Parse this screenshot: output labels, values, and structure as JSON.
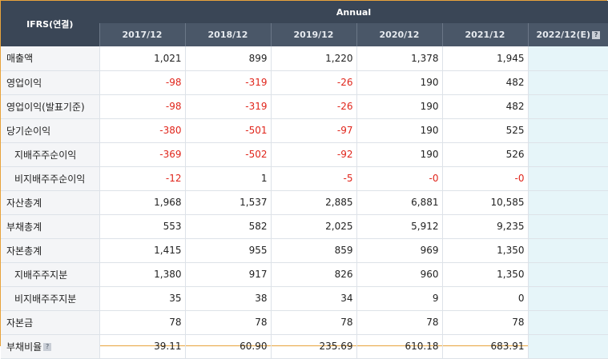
{
  "header": {
    "corner_label": "IFRS(연결)",
    "group_label": "Annual",
    "columns": [
      "2017/12",
      "2018/12",
      "2019/12",
      "2020/12",
      "2021/12",
      "2022/12(E)"
    ],
    "help_glyph": "?"
  },
  "rows": [
    {
      "label": "매출액",
      "values": [
        "1,021",
        "899",
        "1,220",
        "1,378",
        "1,945",
        ""
      ]
    },
    {
      "label": "영업이익",
      "values": [
        "-98",
        "-319",
        "-26",
        "190",
        "482",
        ""
      ]
    },
    {
      "label": "영업이익(발표기준)",
      "values": [
        "-98",
        "-319",
        "-26",
        "190",
        "482",
        ""
      ]
    },
    {
      "label": "당기순이익",
      "values": [
        "-380",
        "-501",
        "-97",
        "190",
        "525",
        ""
      ]
    },
    {
      "label": "지배주주순이익",
      "values": [
        "-369",
        "-502",
        "-92",
        "190",
        "526",
        ""
      ]
    },
    {
      "label": "비지배주주순이익",
      "values": [
        "-12",
        "1",
        "-5",
        "-0",
        "-0",
        ""
      ]
    },
    {
      "label": "자산총계",
      "values": [
        "1,968",
        "1,537",
        "2,885",
        "6,881",
        "10,585",
        ""
      ]
    },
    {
      "label": "부채총계",
      "values": [
        "553",
        "582",
        "2,025",
        "5,912",
        "9,235",
        ""
      ]
    },
    {
      "label": "자본총계",
      "values": [
        "1,415",
        "955",
        "859",
        "969",
        "1,350",
        ""
      ]
    },
    {
      "label": "지배주주지분",
      "values": [
        "1,380",
        "917",
        "826",
        "960",
        "1,350",
        ""
      ]
    },
    {
      "label": "비지배주주지분",
      "values": [
        "35",
        "38",
        "34",
        "9",
        "0",
        ""
      ]
    },
    {
      "label": "자본금",
      "values": [
        "78",
        "78",
        "78",
        "78",
        "78",
        ""
      ]
    },
    {
      "label": "부채비율",
      "values": [
        "39.11",
        "60.90",
        "235.69",
        "610.18",
        "683.91",
        ""
      ]
    }
  ],
  "colors": {
    "header_dark": "#3a4656",
    "header_mid": "#4a5768",
    "negative": "#e0251b",
    "estimate_bg": "#e6f5f9",
    "frame": "#e8a33c"
  }
}
